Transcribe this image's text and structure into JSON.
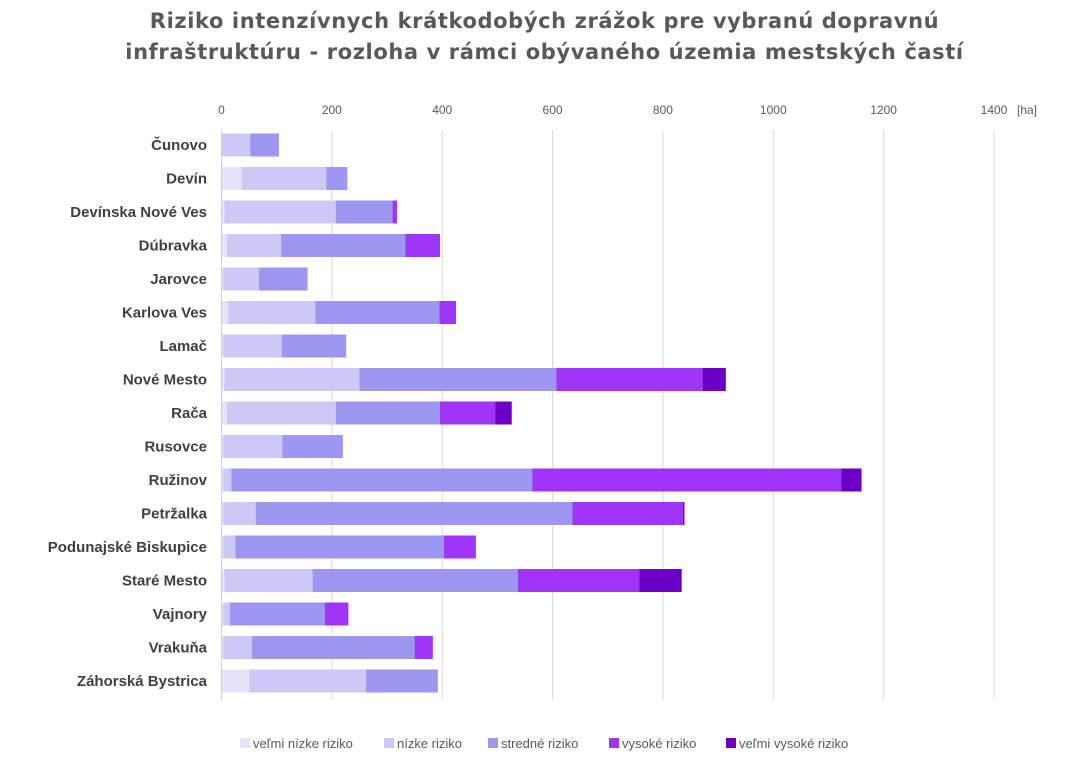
{
  "chart_data": {
    "type": "bar",
    "orientation": "horizontal",
    "stacked": true,
    "title_line1": "Riziko intenzívnych krátkodobých zrážok pre vybranú dopravnú",
    "title_line2": "infraštruktúru - rozloha v rámci obývaného územia mestských častí",
    "unit_label": "[ha]",
    "xlim": [
      0,
      1400
    ],
    "xticks": [
      0,
      200,
      400,
      600,
      800,
      1000,
      1200,
      1400
    ],
    "grid": true,
    "legend_position": "bottom",
    "categories": [
      "Čunovo",
      "Devín",
      "Devínska Nové Ves",
      "Dúbravka",
      "Jarovce",
      "Karlova Ves",
      "Lamač",
      "Nové Mesto",
      "Rača",
      "Rusovce",
      "Ružinov",
      "Petržalka",
      "Podunajské Biskupice",
      "Staré Mesto",
      "Vajnory",
      "Vrakuňa",
      "Záhorská Bystrica"
    ],
    "series": [
      {
        "name": "veľmi nízke riziko",
        "color": "#e4e3fa",
        "values": [
          1,
          37,
          5,
          10,
          3,
          12,
          3,
          5,
          10,
          3,
          3,
          3,
          3,
          5,
          3,
          3,
          50
        ]
      },
      {
        "name": "nízke riziko",
        "color": "#ccc9f6",
        "values": [
          51,
          153,
          202,
          98,
          65,
          158,
          106,
          245,
          197,
          107,
          15,
          59,
          22,
          160,
          12,
          52,
          212
        ]
      },
      {
        "name": "stredné riziko",
        "color": "#9e97f2",
        "values": [
          52,
          38,
          103,
          225,
          88,
          225,
          117,
          357,
          189,
          110,
          545,
          574,
          378,
          372,
          172,
          295,
          130
        ]
      },
      {
        "name": "vysoké riziko",
        "color": "#9f35f7",
        "values": [
          0,
          0,
          8,
          63,
          0,
          30,
          0,
          265,
          100,
          0,
          560,
          200,
          58,
          220,
          43,
          33,
          0
        ]
      },
      {
        "name": "veľmi vysoké riziko",
        "color": "#6a00c4",
        "values": [
          0,
          0,
          0,
          0,
          0,
          0,
          0,
          42,
          30,
          0,
          37,
          3,
          0,
          77,
          0,
          0,
          0
        ]
      }
    ]
  }
}
